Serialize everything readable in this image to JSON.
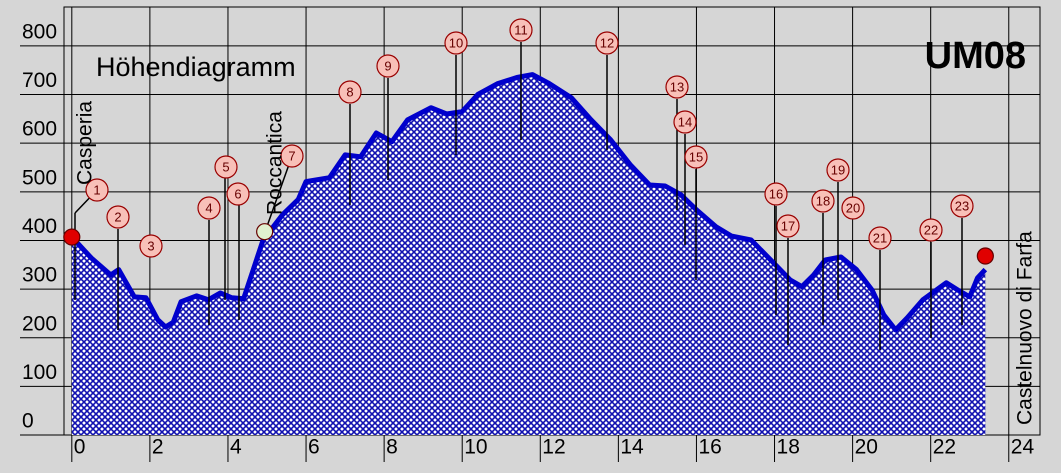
{
  "chart_data": {
    "type": "area",
    "title": "Höhendiagramm",
    "code": "UM08",
    "color": "#0000cc",
    "grid": true,
    "xlim": [
      -0.2,
      24.8
    ],
    "ylim": [
      0,
      880
    ],
    "xticks": [
      0,
      2,
      4,
      6,
      8,
      10,
      12,
      14,
      16,
      18,
      20,
      22,
      24
    ],
    "yticks": [
      0,
      100,
      200,
      300,
      400,
      500,
      600,
      700,
      800
    ],
    "x": [
      0,
      0.5,
      1,
      1.2,
      1.6,
      1.9,
      2.2,
      2.4,
      2.6,
      2.8,
      3.2,
      3.5,
      3.8,
      4.1,
      4.4,
      4.9,
      5.4,
      5.8,
      6,
      6.6,
      7,
      7.4,
      7.8,
      8.2,
      8.6,
      9.2,
      9.6,
      10,
      10.4,
      10.9,
      11.4,
      11.8,
      12.2,
      12.8,
      13.3,
      13.8,
      14.3,
      14.8,
      15.2,
      15.6,
      16,
      16.5,
      16.9,
      17.4,
      17.9,
      18.4,
      18.7,
      19,
      19.3,
      19.7,
      20.1,
      20.5,
      20.8,
      21.1,
      21.4,
      21.8,
      22.4,
      22.7,
      23,
      23.2,
      23.4
    ],
    "values": [
      407,
      364,
      329,
      340,
      284,
      282,
      237,
      222,
      232,
      274,
      286,
      278,
      292,
      282,
      280,
      401,
      453,
      484,
      521,
      529,
      576,
      572,
      621,
      603,
      648,
      673,
      660,
      665,
      700,
      722,
      735,
      741,
      724,
      693,
      648,
      607,
      556,
      514,
      512,
      494,
      463,
      428,
      409,
      401,
      360,
      319,
      305,
      329,
      360,
      366,
      340,
      298,
      247,
      216,
      241,
      278,
      313,
      298,
      284,
      323,
      340
    ],
    "places": [
      {
        "name": "Casperia",
        "x": 0,
        "y": 407,
        "color": "#e00000"
      },
      {
        "name": "Roccantica",
        "x": 4.94,
        "y": 418,
        "color": "#e0f0d0"
      },
      {
        "name": "Castelnuovo di Farfa",
        "x": 23.4,
        "y": 368,
        "color": "#e00000"
      }
    ],
    "stations": [
      "1",
      "2",
      "3",
      "4",
      "5",
      "6",
      "7",
      "8",
      "9",
      "10",
      "11",
      "12",
      "13",
      "14",
      "15",
      "16",
      "17",
      "18",
      "19",
      "20",
      "21",
      "22",
      "23"
    ]
  }
}
